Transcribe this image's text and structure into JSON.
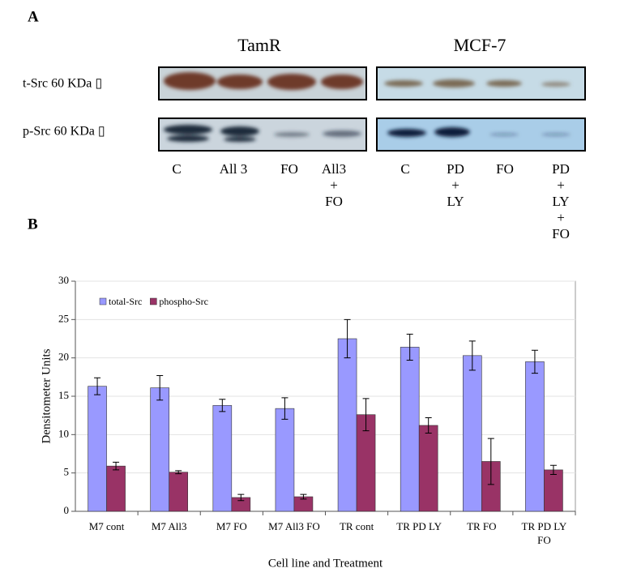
{
  "panel_a": {
    "label": "A",
    "groups": [
      "TamR",
      "MCF-7"
    ],
    "rows": [
      "t-Src 60 KDa ▯",
      "p-Src 60 KDa ▯"
    ],
    "lanes": [
      [
        "C"
      ],
      [
        "All 3"
      ],
      [
        "FO"
      ],
      [
        "All3",
        "+",
        "FO"
      ],
      [
        "C"
      ],
      [
        "PD",
        "+",
        "LY"
      ],
      [
        "FO"
      ],
      [
        "PD",
        "+",
        "LY",
        "+",
        "FO"
      ]
    ]
  },
  "panel_b": {
    "label": "B"
  },
  "chart_data": {
    "type": "bar",
    "x_label": "Cell line and Treatment",
    "y_label": "Densitometer Units",
    "categories": [
      "M7 cont",
      "M7 All3",
      "M7 FO",
      "M7 All3 FO",
      "TR cont",
      "TR PD LY",
      "TR FO",
      "TR PD LY FO"
    ],
    "series": [
      {
        "name": "total-Src",
        "color": "#9999ff",
        "values": [
          16.3,
          16.1,
          13.8,
          13.4,
          22.5,
          21.4,
          20.3,
          19.5
        ],
        "errors": [
          1.1,
          1.6,
          0.8,
          1.4,
          2.5,
          1.7,
          1.9,
          1.5
        ]
      },
      {
        "name": "phospho-Src",
        "color": "#993366",
        "values": [
          5.9,
          5.1,
          1.8,
          1.9,
          12.6,
          11.2,
          6.5,
          5.4
        ],
        "errors": [
          0.5,
          0.2,
          0.4,
          0.3,
          2.1,
          1.0,
          3.0,
          0.6
        ]
      }
    ],
    "ylim": [
      0,
      30
    ],
    "yticks": [
      0,
      5,
      10,
      15,
      20,
      25,
      30
    ],
    "grid": true,
    "legend": "top-left"
  }
}
